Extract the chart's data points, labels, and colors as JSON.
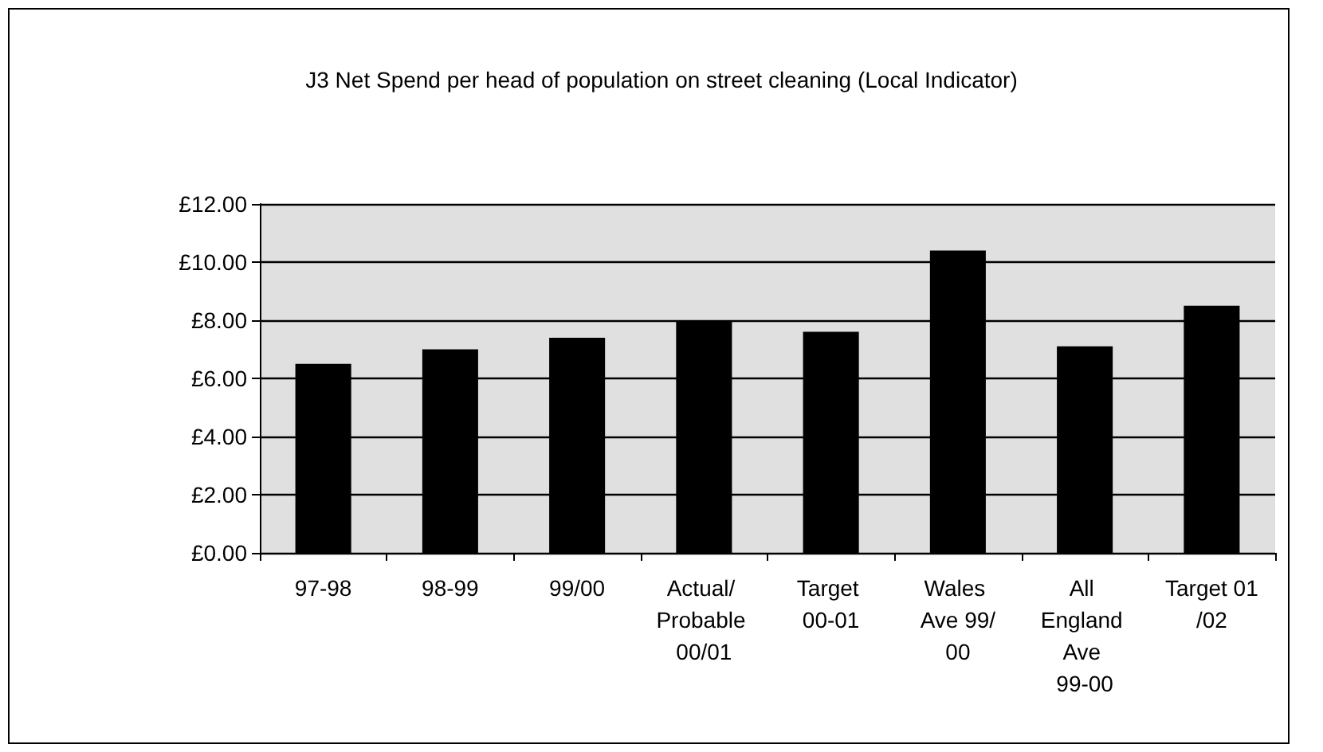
{
  "chart_data": {
    "type": "bar",
    "title": "J3 Net Spend per head of population on street cleaning (Local Indicator)",
    "categories": [
      "97-98",
      "98-99",
      "99/00",
      "Actual/ Probable 00/01",
      "Target 00-01",
      "Wales Ave 99/00",
      "All England Ave 99-00",
      "Target 01/02"
    ],
    "values": [
      6.5,
      7.0,
      7.4,
      8.0,
      7.6,
      10.4,
      7.1,
      8.5
    ],
    "color": "#000000",
    "ylim": [
      0,
      12
    ],
    "yticks": [
      {
        "value": 0,
        "label": "£0.00"
      },
      {
        "value": 2,
        "label": "£2.00"
      },
      {
        "value": 4,
        "label": "£4.00"
      },
      {
        "value": 6,
        "label": "£6.00"
      },
      {
        "value": 8,
        "label": "£8.00"
      },
      {
        "value": 10,
        "label": "£10.00"
      },
      {
        "value": 12,
        "label": "£12.00"
      }
    ],
    "grid": "y"
  }
}
